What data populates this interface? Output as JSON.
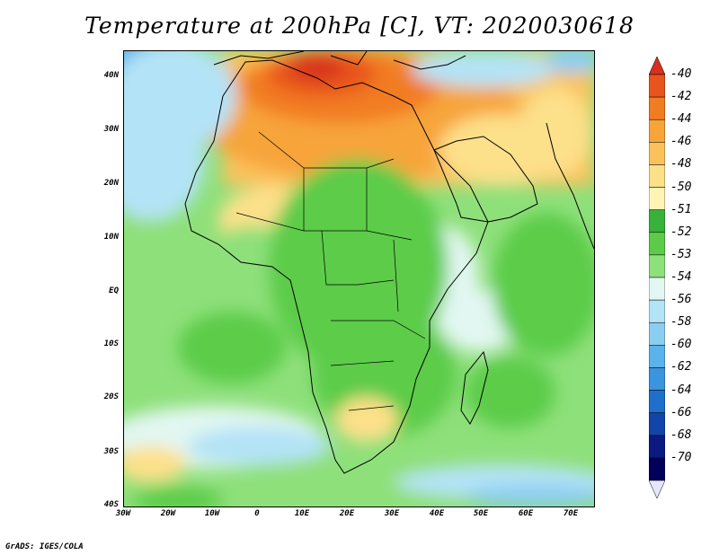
{
  "title": "Temperature at 200hPa [C], VT: 2020030618",
  "footer": "GrADS: IGES/COLA",
  "lat_labels": [
    "40N",
    "30N",
    "20N",
    "10N",
    "EQ",
    "10S",
    "20S",
    "30S",
    "40S"
  ],
  "lon_labels": [
    "30W",
    "20W",
    "10W",
    "0",
    "10E",
    "20E",
    "30E",
    "40E",
    "50E",
    "60E",
    "70E"
  ],
  "colorbar": {
    "labels": [
      "-40",
      "-42",
      "-44",
      "-46",
      "-48",
      "-50",
      "-51",
      "-52",
      "-53",
      "-54",
      "-56",
      "-58",
      "-60",
      "-62",
      "-64",
      "-66",
      "-68",
      "-70"
    ],
    "colors": [
      "#d7301f",
      "#e8541e",
      "#f27c22",
      "#f7a43a",
      "#fbc25c",
      "#fde08a",
      "#fff3b5",
      "#38b23a",
      "#5ccc48",
      "#8ee07a",
      "#e2f7f2",
      "#b3e3f6",
      "#8ccdf2",
      "#5cb2ea",
      "#3a94de",
      "#1f6fcd",
      "#1245aa",
      "#0a1a80",
      "#00005a",
      "#e6e6fa"
    ]
  },
  "colors": {
    "sea_default": "#8ee07a",
    "land_green": "#5ccc48",
    "hot_north": "#f7a43a",
    "hottest": "#d7301f",
    "cold_south": "#b3e3f6"
  }
}
